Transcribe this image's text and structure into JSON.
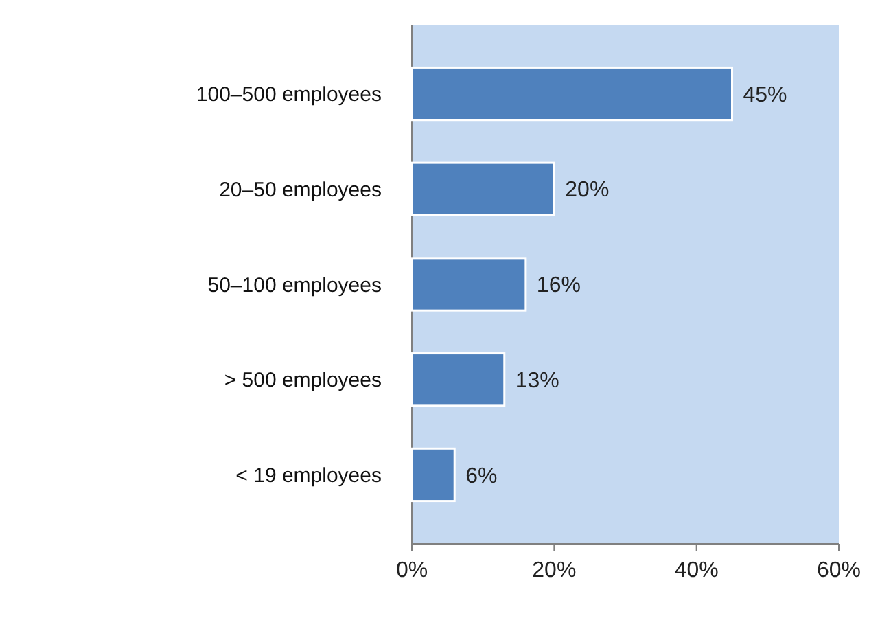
{
  "chart_data": {
    "type": "bar",
    "orientation": "horizontal",
    "categories": [
      "100–500 employees",
      "20–50 employees",
      "50–100 employees",
      "> 500 employees",
      "< 19 employees"
    ],
    "values": [
      45,
      20,
      16,
      13,
      6
    ],
    "value_labels": [
      "45%",
      "20%",
      "16%",
      "13%",
      "6%"
    ],
    "color": "#4f81bd",
    "xlim": [
      0,
      60
    ],
    "xticks": [
      {
        "value": 0,
        "label": "0%"
      },
      {
        "value": 20,
        "label": "20%"
      },
      {
        "value": 40,
        "label": "40%"
      },
      {
        "value": 60,
        "label": "60%"
      }
    ],
    "grid": false
  }
}
